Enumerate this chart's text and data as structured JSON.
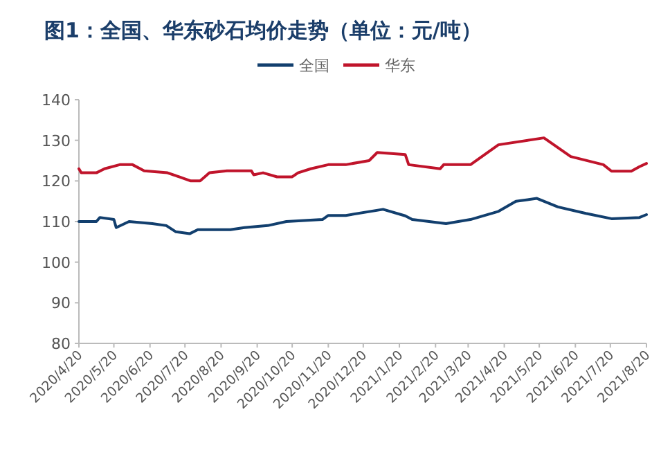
{
  "chart_data": {
    "type": "line",
    "title": "图1：全国、华东砂石均价走势（单位：元/吨）",
    "legend": "top",
    "grid": false,
    "ylim": [
      80,
      140
    ],
    "yticks": [
      80,
      90,
      100,
      110,
      120,
      130,
      140
    ],
    "xlim": [
      "2020-04-20",
      "2021-08-20"
    ],
    "xticks": [
      {
        "value": "2020-04-20",
        "label": "2020/4/20"
      },
      {
        "value": "2020-05-20",
        "label": "2020/5/20"
      },
      {
        "value": "2020-06-20",
        "label": "2020/6/20"
      },
      {
        "value": "2020-07-20",
        "label": "2020/7/20"
      },
      {
        "value": "2020-08-20",
        "label": "2020/8/20"
      },
      {
        "value": "2020-09-20",
        "label": "2020/9/20"
      },
      {
        "value": "2020-10-20",
        "label": "2020/10/20"
      },
      {
        "value": "2020-11-20",
        "label": "2020/11/20"
      },
      {
        "value": "2020-12-20",
        "label": "2020/12/20"
      },
      {
        "value": "2021-01-20",
        "label": "2021/1/20"
      },
      {
        "value": "2021-02-20",
        "label": "2021/2/20"
      },
      {
        "value": "2021-03-20",
        "label": "2021/3/20"
      },
      {
        "value": "2021-04-20",
        "label": "2021/4/20"
      },
      {
        "value": "2021-05-20",
        "label": "2021/5/20"
      },
      {
        "value": "2021-06-20",
        "label": "2021/6/20"
      },
      {
        "value": "2021-07-20",
        "label": "2021/7/20"
      },
      {
        "value": "2021-08-20",
        "label": "2021/8/20"
      }
    ],
    "series": [
      {
        "name": "全国",
        "color": "#123f6e",
        "x": [
          "2020-04-20",
          "2020-05-05",
          "2020-05-08",
          "2020-05-20",
          "2020-05-22",
          "2020-06-02",
          "2020-06-22",
          "2020-07-04",
          "2020-07-12",
          "2020-07-24",
          "2020-07-31",
          "2020-08-28",
          "2020-09-09",
          "2020-09-29",
          "2020-10-15",
          "2020-11-15",
          "2020-11-20",
          "2020-12-05",
          "2021-01-06",
          "2021-01-25",
          "2021-01-31",
          "2021-03-01",
          "2021-03-22",
          "2021-04-15",
          "2021-04-30",
          "2021-05-18",
          "2021-06-05",
          "2021-06-29",
          "2021-07-21",
          "2021-08-14",
          "2021-08-20"
        ],
        "values": [
          110,
          110,
          111,
          110.5,
          108.5,
          110,
          109.5,
          109,
          107.5,
          107,
          108,
          108,
          108.5,
          109,
          110,
          110.5,
          111.5,
          111.5,
          113,
          111.4,
          110.5,
          109.5,
          110.5,
          112.5,
          115,
          115.7,
          113.6,
          112,
          110.7,
          111,
          111.7
        ]
      },
      {
        "name": "华东",
        "color": "#c0142b",
        "x": [
          "2020-04-20",
          "2020-04-22",
          "2020-05-05",
          "2020-05-12",
          "2020-05-25",
          "2020-06-05",
          "2020-06-15",
          "2020-07-05",
          "2020-07-15",
          "2020-07-25",
          "2020-08-02",
          "2020-08-10",
          "2020-08-25",
          "2020-09-15",
          "2020-09-17",
          "2020-09-25",
          "2020-10-07",
          "2020-10-20",
          "2020-10-25",
          "2020-11-05",
          "2020-11-20",
          "2020-12-05",
          "2020-12-25",
          "2021-01-01",
          "2021-01-25",
          "2021-01-28",
          "2021-02-24",
          "2021-02-27",
          "2021-03-22",
          "2021-04-15",
          "2021-05-24",
          "2021-06-16",
          "2021-07-14",
          "2021-07-21",
          "2021-08-07",
          "2021-08-14",
          "2021-08-20"
        ],
        "values": [
          123,
          122,
          122,
          123,
          124,
          124,
          122.5,
          122,
          121,
          120,
          120,
          122,
          122.5,
          122.5,
          121.5,
          122,
          121,
          121,
          122,
          123,
          124,
          124,
          125,
          127,
          126.5,
          124,
          123,
          124,
          124,
          128.9,
          130.6,
          126,
          124,
          122.4,
          122.4,
          123.5,
          124.3
        ]
      }
    ]
  }
}
